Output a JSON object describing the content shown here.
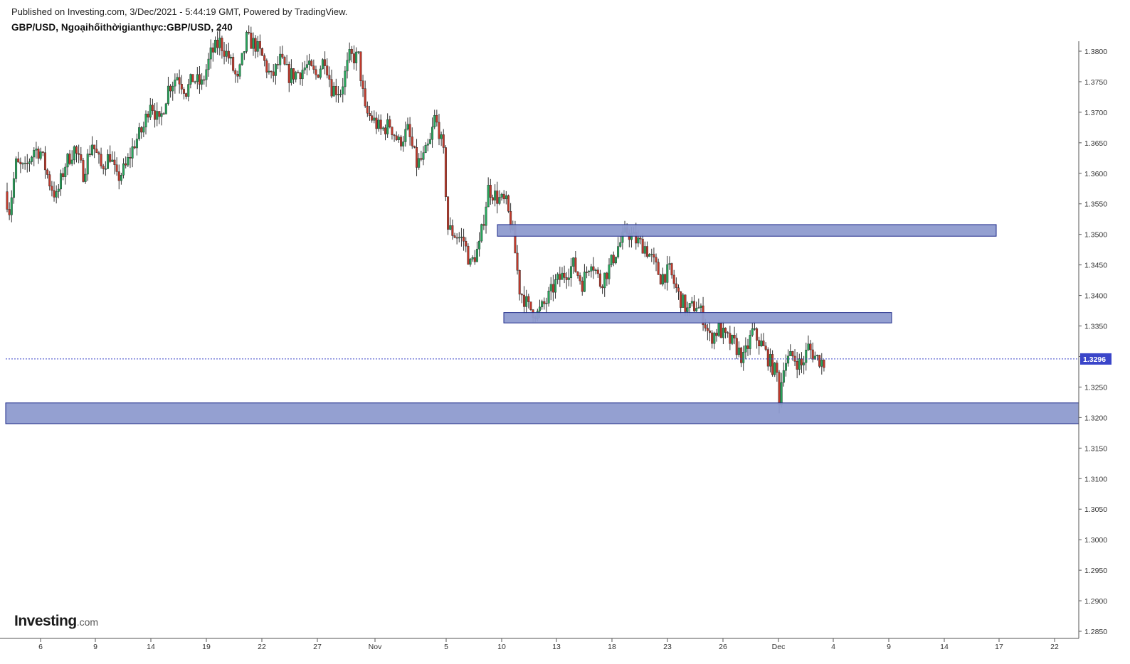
{
  "header": {
    "published": "Published on Investing.com, 3/Dec/2021 - 5:44:19 GMT, Powered by TradingView.",
    "symbol_title": "GBP/USD, Ngoạihốithờigianthực:GBP/USD, 240"
  },
  "logo": {
    "main": "Investing",
    "sub": ".com"
  },
  "colors": {
    "up": "#26a65b",
    "down": "#c0392b",
    "wick": "#333333",
    "zone_fill": "#8e9bcf",
    "zone_border": "#1e2a8a",
    "price_line": "#3a45c9",
    "price_label_bg": "#3a45c9"
  },
  "chart_data": {
    "type": "candlestick",
    "ylim": [
      1.2835,
      1.3815
    ],
    "y_ticks": [
      "1.3800",
      "1.3750",
      "1.3700",
      "1.3650",
      "1.3600",
      "1.3550",
      "1.3500",
      "1.3450",
      "1.3400",
      "1.3350",
      "1.3300",
      "1.3250",
      "1.3200",
      "1.3150",
      "1.3100",
      "1.3050",
      "1.3000",
      "1.2950",
      "1.2900",
      "1.2850"
    ],
    "x_ticks": [
      "6",
      "9",
      "14",
      "19",
      "22",
      "27",
      "Nov",
      "5",
      "10",
      "13",
      "18",
      "23",
      "26",
      "Dec",
      "4",
      "9",
      "14",
      "17",
      "22"
    ],
    "current_price": {
      "value": 1.3296,
      "label": "1.3296"
    },
    "zones": [
      {
        "name": "resistance-zone-upper",
        "x_from": "10 Nov",
        "x_to": "17 Dec",
        "y_low": 1.3497,
        "y_high": 1.3516
      },
      {
        "name": "resistance-zone-middle",
        "x_from": "10 Nov",
        "x_to": "9 Dec",
        "y_low": 1.3355,
        "y_high": 1.3372
      },
      {
        "name": "support-zone-lower",
        "x_from": "chart start",
        "x_to": "chart end",
        "y_low": 1.319,
        "y_high": 1.3224
      }
    ],
    "price_path": [
      [
        0,
        1.357
      ],
      [
        2,
        1.354
      ],
      [
        5,
        1.3615
      ],
      [
        9,
        1.3605
      ],
      [
        13,
        1.364
      ],
      [
        16,
        1.3635
      ],
      [
        20,
        1.3585
      ],
      [
        23,
        1.356
      ],
      [
        27,
        1.3615
      ],
      [
        31,
        1.364
      ],
      [
        35,
        1.36
      ],
      [
        39,
        1.365
      ],
      [
        43,
        1.361
      ],
      [
        47,
        1.363
      ],
      [
        50,
        1.359
      ],
      [
        54,
        1.361
      ],
      [
        58,
        1.365
      ],
      [
        62,
        1.3675
      ],
      [
        65,
        1.372
      ],
      [
        69,
        1.368
      ],
      [
        73,
        1.374
      ],
      [
        77,
        1.376
      ],
      [
        81,
        1.3735
      ],
      [
        84,
        1.3755
      ],
      [
        88,
        1.3745
      ],
      [
        92,
        1.3795
      ],
      [
        96,
        1.3815
      ],
      [
        100,
        1.379
      ],
      [
        104,
        1.375
      ],
      [
        108,
        1.382
      ],
      [
        112,
        1.381
      ],
      [
        115,
        1.379
      ],
      [
        119,
        1.3755
      ],
      [
        123,
        1.3785
      ],
      [
        127,
        1.376
      ],
      [
        131,
        1.3765
      ],
      [
        135,
        1.3775
      ],
      [
        139,
        1.376
      ],
      [
        143,
        1.379
      ],
      [
        146,
        1.374
      ],
      [
        150,
        1.3735
      ],
      [
        154,
        1.379
      ],
      [
        158,
        1.379
      ],
      [
        161,
        1.37
      ],
      [
        164,
        1.369
      ],
      [
        168,
        1.367
      ],
      [
        172,
        1.368
      ],
      [
        176,
        1.365
      ],
      [
        180,
        1.367
      ],
      [
        184,
        1.3615
      ],
      [
        187,
        1.3625
      ],
      [
        190,
        1.365
      ],
      [
        192,
        1.369
      ],
      [
        194,
        1.367
      ],
      [
        196,
        1.363
      ],
      [
        198,
        1.351
      ],
      [
        201,
        1.35
      ],
      [
        205,
        1.349
      ],
      [
        208,
        1.345
      ],
      [
        212,
        1.348
      ],
      [
        216,
        1.3575
      ],
      [
        220,
        1.356
      ],
      [
        224,
        1.355
      ],
      [
        227,
        1.35
      ],
      [
        230,
        1.341
      ],
      [
        234,
        1.338
      ],
      [
        238,
        1.337
      ],
      [
        242,
        1.339
      ],
      [
        246,
        1.342
      ],
      [
        250,
        1.3435
      ],
      [
        254,
        1.345
      ],
      [
        258,
        1.342
      ],
      [
        262,
        1.346
      ],
      [
        266,
        1.342
      ],
      [
        270,
        1.3445
      ],
      [
        274,
        1.348
      ],
      [
        278,
        1.3505
      ],
      [
        282,
        1.349
      ],
      [
        286,
        1.348
      ],
      [
        289,
        1.346
      ],
      [
        293,
        1.343
      ],
      [
        297,
        1.344
      ],
      [
        301,
        1.34
      ],
      [
        305,
        1.3375
      ],
      [
        309,
        1.3385
      ],
      [
        312,
        1.3365
      ],
      [
        315,
        1.333
      ],
      [
        319,
        1.3345
      ],
      [
        322,
        1.333
      ],
      [
        326,
        1.332
      ],
      [
        330,
        1.3295
      ],
      [
        334,
        1.334
      ],
      [
        338,
        1.332
      ],
      [
        342,
        1.329
      ],
      [
        345,
        1.327
      ],
      [
        346,
        1.323
      ],
      [
        348,
        1.329
      ],
      [
        352,
        1.33
      ],
      [
        356,
        1.3285
      ],
      [
        359,
        1.3315
      ],
      [
        362,
        1.33
      ],
      [
        366,
        1.329
      ]
    ],
    "candle_count": 367,
    "gap_after_count": 129
  }
}
